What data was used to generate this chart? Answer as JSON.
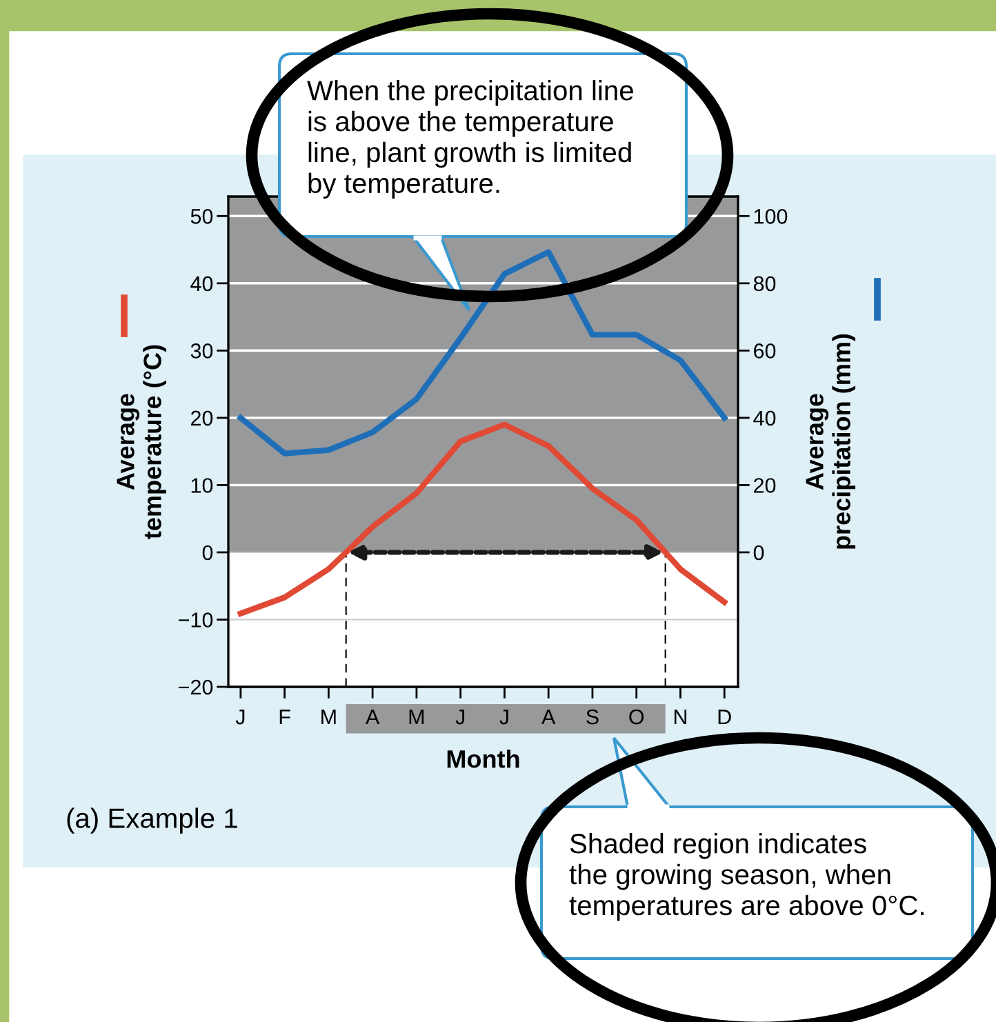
{
  "chart_data": {
    "type": "line",
    "categories": [
      "J",
      "F",
      "M",
      "A",
      "M",
      "J",
      "J",
      "A",
      "S",
      "O",
      "N",
      "D"
    ],
    "series": [
      {
        "color": "#e04a35",
        "values": [
          -9.1,
          -6.7,
          -2.5,
          3.8,
          8.8,
          16.5,
          19.0,
          15.8,
          9.5,
          4.8,
          -2.5,
          -7.4
        ]
      },
      {
        "color": "#1f6fb8",
        "axis": "y2",
        "values": [
          40,
          29.4,
          30.4,
          35.7,
          45.6,
          63.7,
          82.8,
          89.3,
          64.7,
          64.7,
          57.1,
          40
        ]
      }
    ],
    "xlabel": "Month",
    "ylabel": "Average\ntemperature (°C)",
    "y2label": "Average\nprecipitation (mm)",
    "ylim": [
      -20,
      52.9
    ],
    "yticks": [
      -20,
      -10,
      0,
      10,
      20,
      30,
      40,
      50
    ],
    "y2lim": [
      -40,
      105.8
    ],
    "y2ticks": [
      0,
      20,
      40,
      60,
      80,
      100
    ],
    "grid": "y",
    "bands": [
      {
        "axis": "y",
        "from": 0,
        "to": 52.9,
        "color": "#98999b"
      }
    ],
    "annotations": [
      "When the precipitation line\nis above the temperature\nline, plant growth is limited\nby temperature.",
      "Shaded region indicates\nthe growing season, when\ntemperatures are above 0°C.",
      "(a) Example 1"
    ]
  }
}
